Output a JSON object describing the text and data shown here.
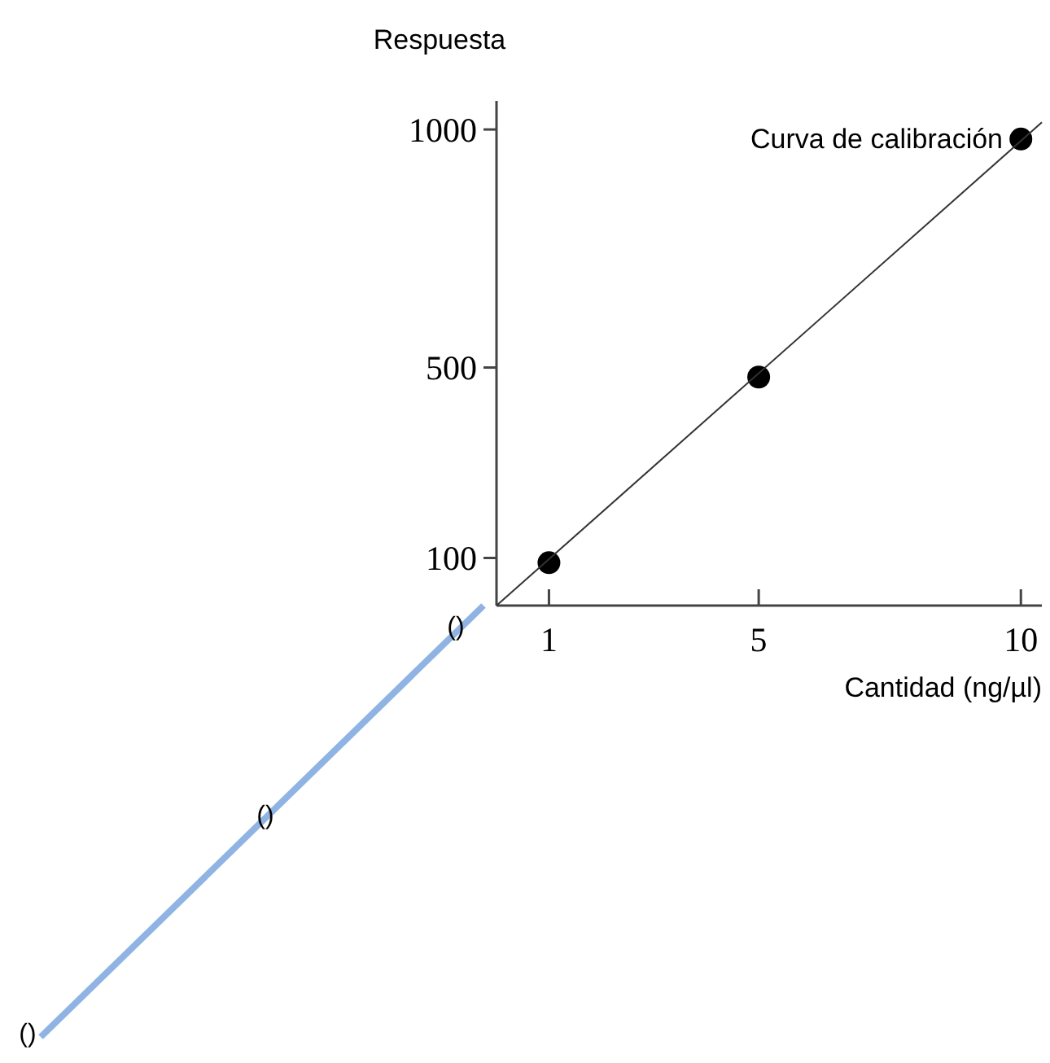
{
  "chart_data": {
    "type": "scatter",
    "xlabel": "Cantidad (ng/µl)",
    "ylabel": "Respuesta",
    "x": [
      1,
      5,
      10
    ],
    "xlim": [
      0,
      10.4
    ],
    "ylim": [
      0,
      1060
    ],
    "xticks": [
      1,
      5,
      10
    ],
    "yticks": [
      100,
      500,
      1000
    ],
    "series": [
      {
        "color": "#000000",
        "marker": "circle",
        "values": [
          90,
          480,
          980
        ]
      },
      {
        "type": "line",
        "name": "Curva de calibración",
        "color": "#333333",
        "marker": "none",
        "x": [
          0,
          10.4
        ],
        "values": [
          0,
          1015
        ]
      }
    ],
    "annotations": [
      "()",
      "()",
      "()"
    ]
  }
}
